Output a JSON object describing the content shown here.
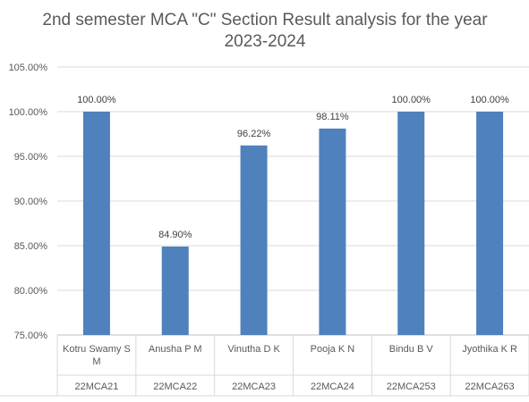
{
  "chart_data": {
    "type": "bar",
    "title_lines": [
      "2nd semester MCA \"C\" Section Result analysis for the year",
      "2023-2024"
    ],
    "categories": [
      {
        "name_lines": [
          "Kotru Swamy S",
          "M"
        ],
        "usn": "22MCA21"
      },
      {
        "name_lines": [
          "Anusha P M"
        ],
        "usn": "22MCA22"
      },
      {
        "name_lines": [
          "Vinutha D K"
        ],
        "usn": "22MCA23"
      },
      {
        "name_lines": [
          "Pooja K N"
        ],
        "usn": "22MCA24"
      },
      {
        "name_lines": [
          "Bindu B V"
        ],
        "usn": "22MCA253"
      },
      {
        "name_lines": [
          "Jyothika K R"
        ],
        "usn": "22MCA263"
      }
    ],
    "values": [
      100.0,
      84.9,
      96.22,
      98.11,
      100.0,
      100.0
    ],
    "data_labels": [
      "100.00%",
      "84.90%",
      "96.22%",
      "98.11%",
      "100.00%",
      "100.00%"
    ],
    "yticks": [
      "75.00%",
      "80.00%",
      "85.00%",
      "90.00%",
      "95.00%",
      "100.00%",
      "105.00%"
    ],
    "ylim": [
      75,
      105
    ],
    "ytick_step": 5,
    "bar_color": "#4F81BD",
    "grid": true,
    "legend": "none"
  }
}
